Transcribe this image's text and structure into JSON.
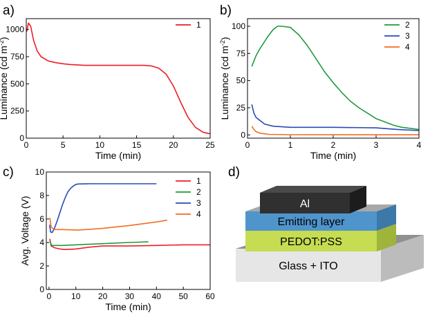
{
  "panels": {
    "a": {
      "letter": "a)"
    },
    "b": {
      "letter": "b)"
    },
    "c": {
      "letter": "c)"
    },
    "d": {
      "letter": "d)"
    }
  },
  "chart_data": [
    {
      "id": "a",
      "type": "line",
      "title": "",
      "xlabel": "Time (min)",
      "ylabel": "Luminance (cd m",
      "ylabel_sup": "-2",
      "ylabel_tail": ")",
      "xlim": [
        0,
        25
      ],
      "ylim": [
        0,
        1100
      ],
      "xticks": [
        0,
        5,
        10,
        15,
        20,
        25
      ],
      "yticks": [
        0,
        250,
        500,
        750,
        1000
      ],
      "legend_position": "top-right",
      "series": [
        {
          "name": "1",
          "color": "#ee1c24",
          "x": [
            0.05,
            0.3,
            0.6,
            1,
            1.5,
            2,
            3,
            4,
            5,
            6,
            8,
            10,
            12,
            14,
            16,
            17,
            18,
            19,
            20,
            21,
            22,
            23,
            24,
            25
          ],
          "y": [
            980,
            1060,
            1030,
            900,
            800,
            750,
            710,
            695,
            685,
            678,
            670,
            670,
            670,
            670,
            670,
            665,
            645,
            590,
            480,
            330,
            190,
            100,
            55,
            40
          ]
        }
      ]
    },
    {
      "id": "b",
      "type": "line",
      "title": "",
      "xlabel": "Time (min)",
      "ylabel": "Luminance (cd m",
      "ylabel_sup": "-2",
      "ylabel_tail": ")",
      "xlim": [
        0,
        4
      ],
      "ylim": [
        -3,
        107
      ],
      "xticks": [
        0,
        1,
        2,
        3,
        4
      ],
      "yticks": [
        0,
        25,
        50,
        75,
        100
      ],
      "legend_position": "top-right",
      "series": [
        {
          "name": "2",
          "color": "#1e9a3a",
          "x": [
            0.1,
            0.2,
            0.3,
            0.4,
            0.5,
            0.6,
            0.7,
            0.8,
            1.0,
            1.2,
            1.4,
            1.6,
            1.8,
            2.0,
            2.2,
            2.4,
            2.6,
            2.8,
            3.0,
            3.2,
            3.4,
            3.6,
            3.8,
            4.0
          ],
          "y": [
            63,
            73,
            80,
            86,
            92,
            97,
            100,
            100,
            99,
            92,
            82,
            70,
            58,
            48,
            39,
            31,
            25,
            20,
            15,
            12,
            9,
            7,
            6,
            5
          ]
        },
        {
          "name": "3",
          "color": "#2a48b7",
          "x": [
            0.1,
            0.15,
            0.2,
            0.3,
            0.4,
            0.6,
            1.0,
            2.0,
            3.0,
            3.5,
            4.0
          ],
          "y": [
            28,
            20,
            16,
            13,
            10,
            8,
            7,
            7,
            6.5,
            5,
            4
          ]
        },
        {
          "name": "4",
          "color": "#f26c1f",
          "x": [
            0.1,
            0.15,
            0.2,
            0.3,
            0.5,
            1.0,
            2.0,
            3.0,
            4.0
          ],
          "y": [
            8,
            5,
            3,
            1.5,
            0.5,
            0.2,
            0.1,
            0.1,
            0.1
          ]
        }
      ]
    },
    {
      "id": "c",
      "type": "line",
      "title": "",
      "xlabel": "Time (min)",
      "ylabel": "Avg. Voltage (V)",
      "xlim": [
        -1,
        60
      ],
      "ylim": [
        0,
        10
      ],
      "xticks": [
        0,
        10,
        20,
        30,
        40,
        50,
        60
      ],
      "yticks": [
        0,
        2,
        4,
        6,
        8,
        10
      ],
      "legend_position": "top-right",
      "series": [
        {
          "name": "1",
          "color": "#ee1c24",
          "x": [
            0.3,
            0.8,
            2,
            4,
            6,
            10,
            15,
            20,
            30,
            40,
            50,
            60
          ],
          "y": [
            4.3,
            3.7,
            3.55,
            3.45,
            3.4,
            3.45,
            3.6,
            3.7,
            3.7,
            3.75,
            3.8,
            3.8
          ]
        },
        {
          "name": "2",
          "color": "#1e9a3a",
          "x": [
            0.3,
            1,
            5,
            10,
            20,
            30,
            37
          ],
          "y": [
            4.1,
            3.75,
            3.75,
            3.8,
            3.9,
            4.0,
            4.05
          ]
        },
        {
          "name": "3",
          "color": "#2a48b7",
          "x": [
            0.2,
            0.6,
            1.2,
            2,
            3,
            4,
            5,
            6,
            7,
            8,
            9,
            10,
            11,
            15,
            20,
            30,
            40
          ],
          "y": [
            5.5,
            4.9,
            4.85,
            5.2,
            5.8,
            6.5,
            7.2,
            7.8,
            8.3,
            8.6,
            8.8,
            8.95,
            8.98,
            9.0,
            9.0,
            9.0,
            9.0
          ]
        },
        {
          "name": "4",
          "color": "#f26c1f",
          "x": [
            0.3,
            0.8,
            2,
            5,
            11,
            20,
            30,
            40,
            44
          ],
          "y": [
            6.1,
            5.3,
            5.1,
            5.1,
            5.05,
            5.2,
            5.45,
            5.75,
            5.9
          ]
        }
      ]
    }
  ],
  "diagram": {
    "layers": [
      {
        "label": "Al",
        "top": "#4a4a4a",
        "front": "#303030",
        "side": "#1c1c1c",
        "text": "#ffffff"
      },
      {
        "label": "Emitting layer",
        "top": "#a8a8a8",
        "front": "#4f95cc",
        "side": "#3c78a8",
        "text": "#000000"
      },
      {
        "label": "PEDOT:PSS",
        "top": "#c4c4c4",
        "front": "#c6dc52",
        "side": "#9eb43a",
        "text": "#000000"
      },
      {
        "label": "Glass + ITO",
        "top": "#909090",
        "front": "#e6e6e6",
        "side": "#bcbcbc",
        "text": "#000000"
      }
    ]
  }
}
